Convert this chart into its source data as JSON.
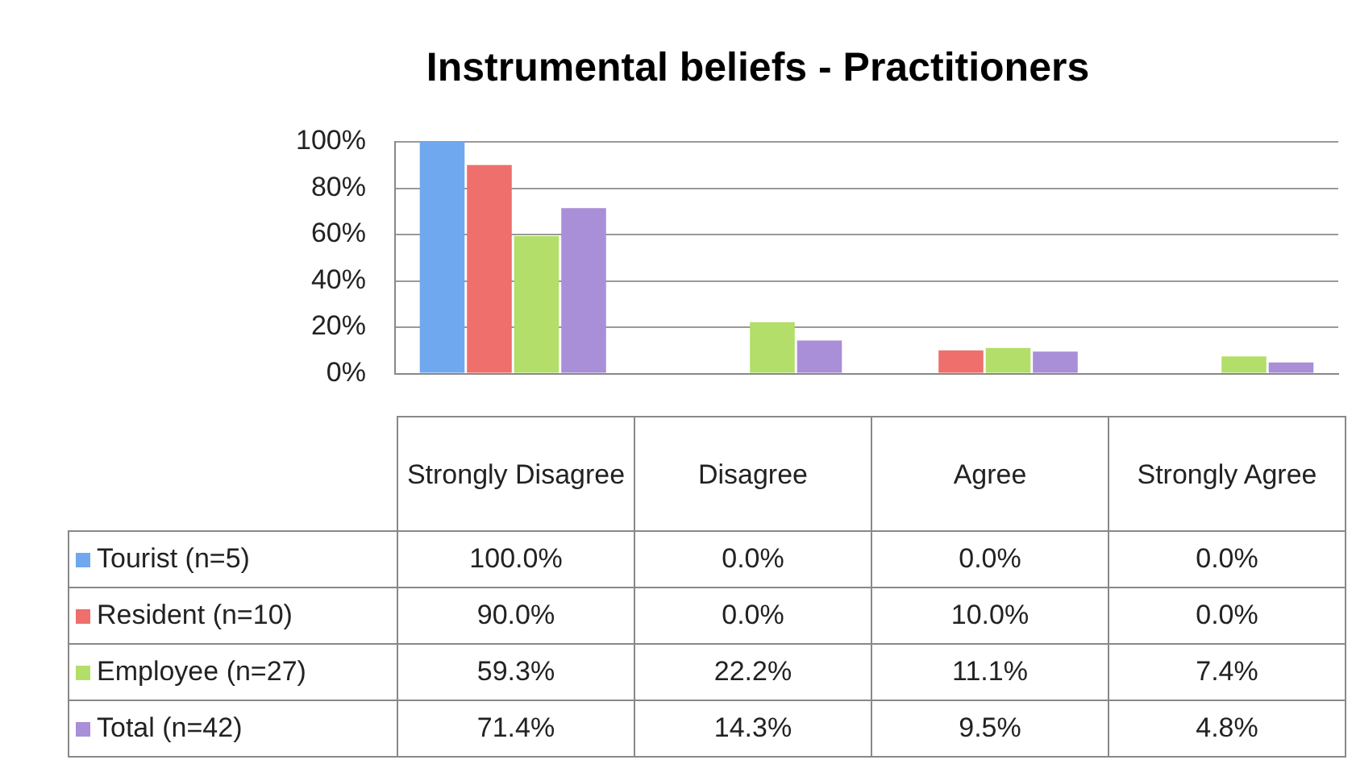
{
  "chart_data": {
    "type": "bar",
    "title": "Instrumental beliefs - Practitioners",
    "categories": [
      "Strongly Disagree",
      "Disagree",
      "Agree",
      "Strongly Agree"
    ],
    "series": [
      {
        "name": "Tourist (n=5)",
        "color": "#6fa8ee",
        "values": [
          100,
          0,
          0,
          0
        ],
        "value_labels": [
          "100.0%",
          "0.0%",
          "0.0%",
          "0.0%"
        ]
      },
      {
        "name": "Resident (n=10)",
        "color": "#ee6f6c",
        "values": [
          90,
          0,
          10,
          0
        ],
        "value_labels": [
          "90.0%",
          "0.0%",
          "10.0%",
          "0.0%"
        ]
      },
      {
        "name": "Employee (n=27)",
        "color": "#b3de69",
        "values": [
          59.3,
          22.2,
          11.1,
          7.4
        ],
        "value_labels": [
          "59.3%",
          "22.2%",
          "11.1%",
          "7.4%"
        ]
      },
      {
        "name": "Total (n=42)",
        "color": "#a98ed8",
        "values": [
          71.4,
          14.3,
          9.5,
          4.8
        ],
        "value_labels": [
          "71.4%",
          "14.3%",
          "9.5%",
          "4.8%"
        ]
      }
    ],
    "ylim": [
      0,
      100
    ],
    "yticks": [
      {
        "value": 0,
        "label": "0%"
      },
      {
        "value": 20,
        "label": "20%"
      },
      {
        "value": 40,
        "label": "40%"
      },
      {
        "value": 60,
        "label": "60%"
      },
      {
        "value": 80,
        "label": "80%"
      },
      {
        "value": 100,
        "label": "100%"
      }
    ],
    "grid": "y",
    "legend": "bottom"
  }
}
